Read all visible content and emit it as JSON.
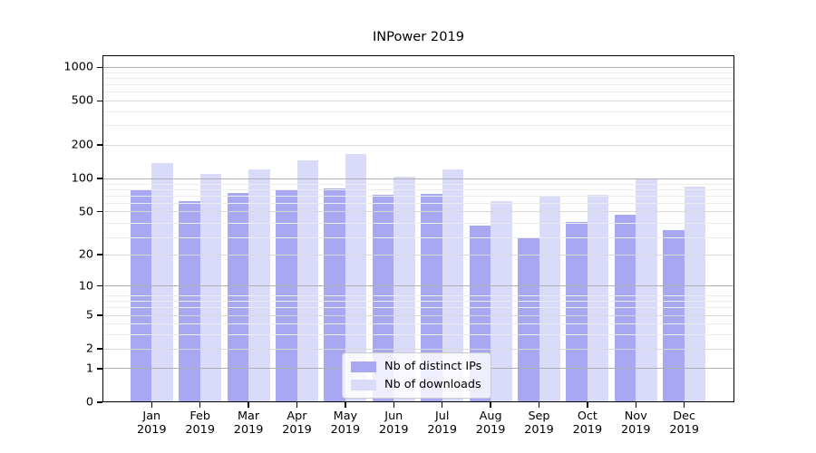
{
  "chart_data": {
    "type": "bar",
    "title": "INPower 2019",
    "categories": [
      "Jan 2019",
      "Feb 2019",
      "Mar 2019",
      "Apr 2019",
      "May 2019",
      "Jun 2019",
      "Jul 2019",
      "Aug 2019",
      "Sep 2019",
      "Oct 2019",
      "Nov 2019",
      "Dec 2019"
    ],
    "series": [
      {
        "name": "Nb of distinct IPs",
        "color": "#a8a8f2",
        "values": [
          78,
          62,
          74,
          80,
          81,
          71,
          73,
          37,
          29,
          40,
          47,
          34
        ]
      },
      {
        "name": "Nb of downloads",
        "color": "#dadaf9",
        "values": [
          138,
          110,
          122,
          147,
          165,
          104,
          120,
          62,
          68,
          71,
          100,
          84
        ]
      }
    ],
    "xlabel": "",
    "ylabel": "",
    "yscale": "log10(y+1)",
    "yticks": [
      0,
      1,
      2,
      5,
      10,
      20,
      50,
      100,
      200,
      500,
      1000
    ],
    "ylim": [
      0,
      1280
    ],
    "grid": true,
    "legend_position": "lower center, inside axes",
    "colors": {
      "bar_distinct_ips": "#a8a8f2",
      "bar_downloads": "#dadaf9",
      "grid_major": "#b0b0b0",
      "grid_mid": "#d9d9d9",
      "grid_minor": "#ececec",
      "axis": "#000000",
      "background": "#ffffff"
    }
  }
}
